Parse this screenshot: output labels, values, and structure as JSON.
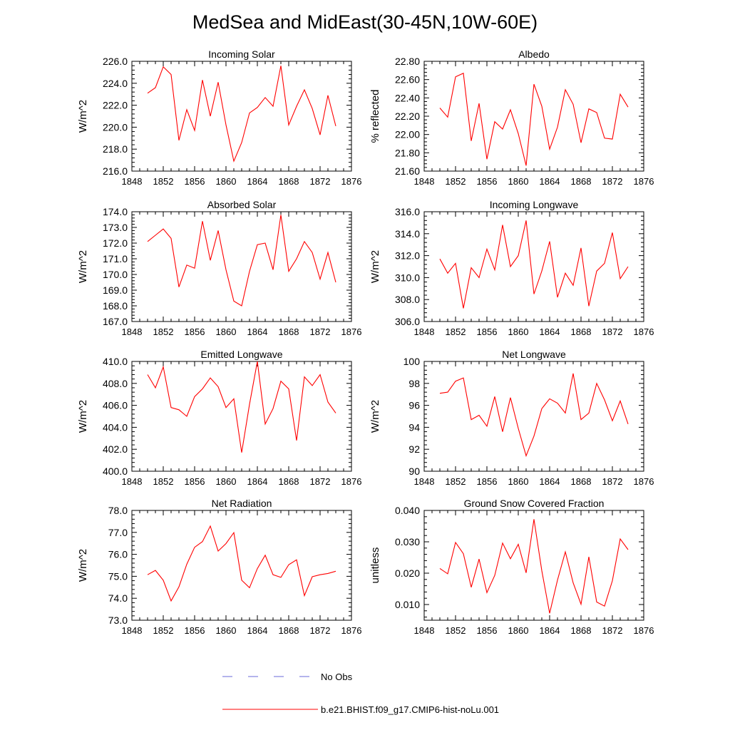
{
  "title": "MedSea and MidEast(30-45N,10W-60E)",
  "series_color": "#ff0000",
  "obs_color": "#6a6ad8",
  "legend": {
    "obs_label": "No Obs",
    "model_label": "b.e21.BHIST.f09_g17.CMIP6-hist-noLu.001"
  },
  "chart_data": [
    {
      "type": "line",
      "title": "Incoming Solar",
      "ylabel": "W/m^2",
      "xlim": [
        1848,
        1876
      ],
      "xticks": [
        "1848",
        "1852",
        "1856",
        "1860",
        "1864",
        "1868",
        "1872",
        "1876"
      ],
      "ylim": [
        216.0,
        226.0
      ],
      "yticks": [
        "216.0",
        "218.0",
        "220.0",
        "222.0",
        "224.0",
        "226.0"
      ],
      "x": [
        1850,
        1851,
        1852,
        1853,
        1854,
        1855,
        1856,
        1857,
        1858,
        1859,
        1860,
        1861,
        1862,
        1863,
        1864,
        1865,
        1866,
        1867,
        1868,
        1869,
        1870,
        1871,
        1872,
        1873,
        1874
      ],
      "series": [
        {
          "values": [
            223.1,
            223.6,
            225.5,
            224.8,
            218.8,
            221.6,
            219.7,
            224.3,
            221.0,
            224.1,
            220.2,
            216.9,
            218.6,
            221.3,
            221.8,
            222.7,
            221.9,
            225.6,
            220.2,
            221.9,
            223.4,
            221.7,
            219.3,
            222.9,
            220.1
          ]
        }
      ]
    },
    {
      "type": "line",
      "title": "Albedo",
      "ylabel": "% reflected",
      "xlim": [
        1848,
        1876
      ],
      "xticks": [
        "1848",
        "1852",
        "1856",
        "1860",
        "1864",
        "1868",
        "1872",
        "1876"
      ],
      "ylim": [
        21.6,
        22.8
      ],
      "yticks": [
        "21.60",
        "21.80",
        "22.00",
        "22.20",
        "22.40",
        "22.60",
        "22.80"
      ],
      "x": [
        1850,
        1851,
        1852,
        1853,
        1854,
        1855,
        1856,
        1857,
        1858,
        1859,
        1860,
        1861,
        1862,
        1863,
        1864,
        1865,
        1866,
        1867,
        1868,
        1869,
        1870,
        1871,
        1872,
        1873,
        1874
      ],
      "series": [
        {
          "values": [
            22.29,
            22.19,
            22.63,
            22.67,
            21.93,
            22.34,
            21.73,
            22.14,
            22.06,
            22.27,
            22.01,
            21.66,
            22.55,
            22.31,
            21.84,
            22.08,
            22.49,
            22.33,
            21.91,
            22.28,
            22.24,
            21.96,
            21.95,
            22.44,
            22.3
          ]
        }
      ]
    },
    {
      "type": "line",
      "title": "Absorbed Solar",
      "ylabel": "W/m^2",
      "xlim": [
        1848,
        1876
      ],
      "xticks": [
        "1848",
        "1852",
        "1856",
        "1860",
        "1864",
        "1868",
        "1872",
        "1876"
      ],
      "ylim": [
        167.0,
        174.0
      ],
      "yticks": [
        "167.0",
        "168.0",
        "169.0",
        "170.0",
        "171.0",
        "172.0",
        "173.0",
        "174.0"
      ],
      "x": [
        1850,
        1851,
        1852,
        1853,
        1854,
        1855,
        1856,
        1857,
        1858,
        1859,
        1860,
        1861,
        1862,
        1863,
        1864,
        1865,
        1866,
        1867,
        1868,
        1869,
        1870,
        1871,
        1872,
        1873,
        1874
      ],
      "series": [
        {
          "values": [
            172.1,
            172.5,
            172.9,
            172.3,
            169.2,
            170.6,
            170.4,
            173.4,
            170.9,
            172.8,
            170.3,
            168.3,
            168.0,
            170.2,
            171.9,
            172.0,
            170.3,
            173.8,
            170.2,
            171.0,
            172.1,
            171.4,
            169.7,
            171.4,
            169.5
          ]
        }
      ]
    },
    {
      "type": "line",
      "title": "Incoming Longwave",
      "ylabel": "W/m^2",
      "xlim": [
        1848,
        1876
      ],
      "xticks": [
        "1848",
        "1852",
        "1856",
        "1860",
        "1864",
        "1868",
        "1872",
        "1876"
      ],
      "ylim": [
        306.0,
        316.0
      ],
      "yticks": [
        "306.0",
        "308.0",
        "310.0",
        "312.0",
        "314.0",
        "316.0"
      ],
      "x": [
        1850,
        1851,
        1852,
        1853,
        1854,
        1855,
        1856,
        1857,
        1858,
        1859,
        1860,
        1861,
        1862,
        1863,
        1864,
        1865,
        1866,
        1867,
        1868,
        1869,
        1870,
        1871,
        1872,
        1873,
        1874
      ],
      "series": [
        {
          "values": [
            311.7,
            310.4,
            311.3,
            307.2,
            310.9,
            310.0,
            312.6,
            310.7,
            314.8,
            311.0,
            312.0,
            315.2,
            308.5,
            310.6,
            313.3,
            308.2,
            310.4,
            309.3,
            312.7,
            307.4,
            310.6,
            311.3,
            314.1,
            309.9,
            311.0
          ]
        }
      ]
    },
    {
      "type": "line",
      "title": "Emitted Longwave",
      "ylabel": "W/m^2",
      "xlim": [
        1848,
        1876
      ],
      "xticks": [
        "1848",
        "1852",
        "1856",
        "1860",
        "1864",
        "1868",
        "1872",
        "1876"
      ],
      "ylim": [
        400.0,
        410.0
      ],
      "yticks": [
        "400.0",
        "402.0",
        "404.0",
        "406.0",
        "408.0",
        "410.0"
      ],
      "x": [
        1850,
        1851,
        1852,
        1853,
        1854,
        1855,
        1856,
        1857,
        1858,
        1859,
        1860,
        1861,
        1862,
        1863,
        1864,
        1865,
        1866,
        1867,
        1868,
        1869,
        1870,
        1871,
        1872,
        1873,
        1874
      ],
      "series": [
        {
          "values": [
            408.8,
            407.6,
            409.5,
            405.8,
            405.6,
            405.0,
            406.8,
            407.5,
            408.5,
            407.7,
            405.8,
            406.6,
            401.7,
            406.1,
            410.0,
            404.3,
            405.7,
            408.2,
            407.5,
            402.8,
            408.6,
            407.8,
            408.8,
            406.3,
            405.3
          ]
        }
      ]
    },
    {
      "type": "line",
      "title": "Net Longwave",
      "ylabel": "W/m^2",
      "xlim": [
        1848,
        1876
      ],
      "xticks": [
        "1848",
        "1852",
        "1856",
        "1860",
        "1864",
        "1868",
        "1872",
        "1876"
      ],
      "ylim": [
        90,
        100
      ],
      "yticks": [
        "90",
        "92",
        "94",
        "96",
        "98",
        "100"
      ],
      "x": [
        1850,
        1851,
        1852,
        1853,
        1854,
        1855,
        1856,
        1857,
        1858,
        1859,
        1860,
        1861,
        1862,
        1863,
        1864,
        1865,
        1866,
        1867,
        1868,
        1869,
        1870,
        1871,
        1872,
        1873,
        1874
      ],
      "series": [
        {
          "values": [
            97.1,
            97.2,
            98.2,
            98.5,
            94.7,
            95.1,
            94.1,
            96.8,
            93.6,
            96.7,
            93.9,
            91.4,
            93.2,
            95.7,
            96.6,
            96.2,
            95.3,
            98.9,
            94.7,
            95.3,
            98.0,
            96.5,
            94.6,
            96.4,
            94.3
          ]
        }
      ]
    },
    {
      "type": "line",
      "title": "Net Radiation",
      "ylabel": "W/m^2",
      "xlim": [
        1848,
        1876
      ],
      "xticks": [
        "1848",
        "1852",
        "1856",
        "1860",
        "1864",
        "1868",
        "1872",
        "1876"
      ],
      "ylim": [
        73.0,
        78.0
      ],
      "yticks": [
        "73.0",
        "74.0",
        "75.0",
        "76.0",
        "77.0",
        "78.0"
      ],
      "x": [
        1850,
        1851,
        1852,
        1853,
        1854,
        1855,
        1856,
        1857,
        1858,
        1859,
        1860,
        1861,
        1862,
        1863,
        1864,
        1865,
        1866,
        1867,
        1868,
        1869,
        1870,
        1871,
        1872,
        1873,
        1874
      ],
      "series": [
        {
          "values": [
            75.07,
            75.27,
            74.82,
            73.88,
            74.52,
            75.55,
            76.32,
            76.58,
            77.29,
            76.15,
            76.49,
            76.99,
            74.82,
            74.48,
            75.35,
            75.96,
            75.07,
            74.95,
            75.53,
            75.75,
            74.12,
            74.98,
            75.07,
            75.13,
            75.23
          ]
        }
      ]
    },
    {
      "type": "line",
      "title": "Ground Snow Covered Fraction",
      "ylabel": "unitless",
      "xlim": [
        1848,
        1876
      ],
      "xticks": [
        "1848",
        "1852",
        "1856",
        "1860",
        "1864",
        "1868",
        "1872",
        "1876"
      ],
      "ylim": [
        0.005,
        0.04
      ],
      "yticks": [
        "0.010",
        "0.020",
        "0.030",
        "0.040"
      ],
      "ytick_values": [
        0.01,
        0.02,
        0.03,
        0.04
      ],
      "x": [
        1850,
        1851,
        1852,
        1853,
        1854,
        1855,
        1856,
        1857,
        1858,
        1859,
        1860,
        1861,
        1862,
        1863,
        1864,
        1865,
        1866,
        1867,
        1868,
        1869,
        1870,
        1871,
        1872,
        1873,
        1874
      ],
      "series": [
        {
          "values": [
            0.0215,
            0.0198,
            0.0298,
            0.0262,
            0.0155,
            0.0245,
            0.0138,
            0.0193,
            0.0296,
            0.0246,
            0.0292,
            0.0201,
            0.0372,
            0.0208,
            0.0072,
            0.0178,
            0.0268,
            0.0169,
            0.0101,
            0.0252,
            0.0108,
            0.0095,
            0.0176,
            0.0309,
            0.0275
          ]
        }
      ]
    }
  ]
}
